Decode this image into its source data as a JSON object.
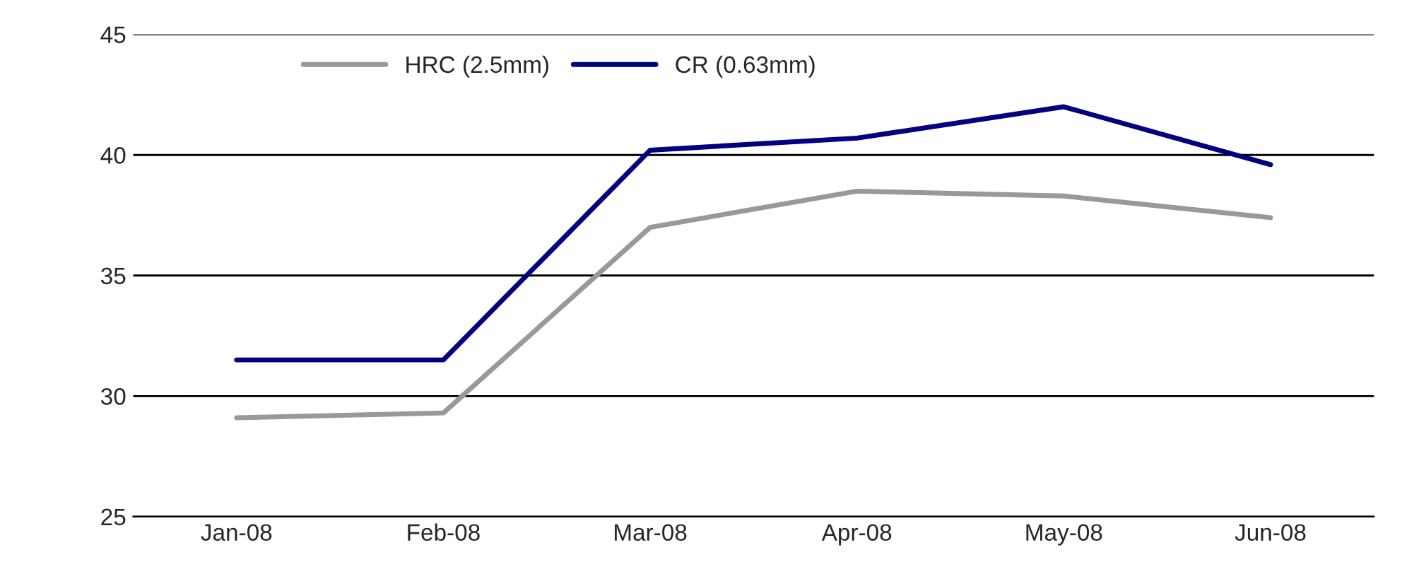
{
  "chart_data": {
    "type": "line",
    "categories": [
      "Jan-08",
      "Feb-08",
      "Mar-08",
      "Apr-08",
      "May-08",
      "Jun-08"
    ],
    "series": [
      {
        "name": "HRC (2.5mm)",
        "color": "#999999",
        "values": [
          29.1,
          29.3,
          37.0,
          38.5,
          38.3,
          37.4
        ]
      },
      {
        "name": "CR (0.63mm)",
        "color": "#000080",
        "values": [
          31.5,
          31.5,
          40.2,
          40.7,
          42.0,
          39.6
        ]
      }
    ],
    "ylim": [
      25,
      45
    ],
    "yticks": [
      25,
      30,
      35,
      40,
      45
    ],
    "grid": "y",
    "legend": "top left",
    "marker": "none",
    "line_style": "solid"
  }
}
